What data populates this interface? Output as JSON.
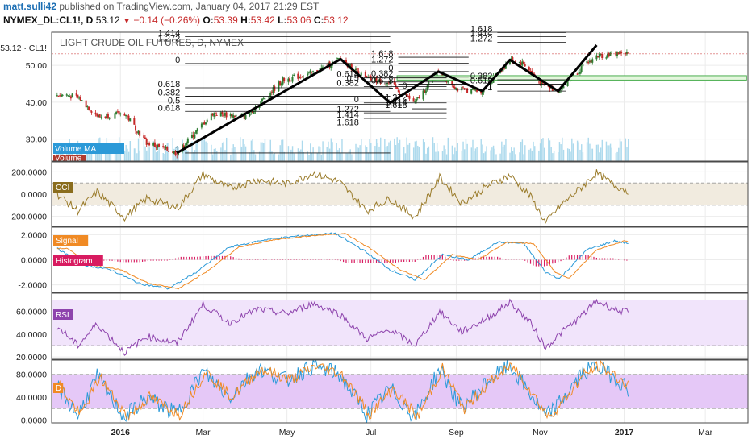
{
  "header": {
    "author": "matt.sulli42",
    "published": "published on TradingView.com, January 04, 2017 21:29 EST",
    "symbol": "NYMEX_DL:CL1!, D",
    "last": "53.12",
    "change": "−0.14 (−0.26%)",
    "o_label": "O:",
    "o_value": "53.39",
    "h_label": "H:",
    "h_value": "53.42",
    "l_label": "L:",
    "l_value": "53.06",
    "c_label": "C:",
    "c_value": "53.12"
  },
  "colors": {
    "bull": "#2e7d32",
    "bear": "#c62828",
    "volume": "#9fd3ea",
    "cci": "#9a7b2a",
    "cci_band": "#f1ebdf",
    "macd": "#2c9ad8",
    "signal": "#f08a24",
    "histogram": "#d81b60",
    "rsi": "#8e44ad",
    "rsi_band": "#f1e4fb",
    "stoch_k": "#2c9ad8",
    "stoch_d": "#f08a24",
    "stoch_band": "#e5c8f7",
    "zone": "#e4f6dd",
    "zone_edge": "#4caf50"
  },
  "chart_data": [
    {
      "type": "candlestick",
      "title": "LIGHT CRUDE OIL FUTURES, D, NYMEX",
      "price_tag": "53.12 · CL1!",
      "yticks": [
        "50.00",
        "40.00",
        "30.00"
      ],
      "ylim": [
        24,
        59
      ],
      "last_price": 53.12,
      "legend": [
        "Volume MA",
        "Volume"
      ],
      "price_path": {
        "dates": [
          "2015-11-23",
          "2015-12-02",
          "2015-12-16",
          "2016-01-04",
          "2016-01-20",
          "2016-02-11",
          "2016-03-08",
          "2016-04-01",
          "2016-04-28",
          "2016-05-20",
          "2016-06-09",
          "2016-06-27",
          "2016-07-15",
          "2016-08-02",
          "2016-08-19",
          "2016-09-02",
          "2016-09-20",
          "2016-10-10",
          "2016-10-20",
          "2016-11-03",
          "2016-11-14",
          "2016-11-30",
          "2016-12-12",
          "2016-12-30",
          "2017-01-04"
        ],
        "values": [
          42.0,
          41.0,
          36.0,
          37.0,
          29.0,
          26.2,
          37.0,
          36.0,
          46.0,
          48.0,
          51.7,
          46.5,
          45.0,
          39.8,
          48.3,
          43.5,
          43.0,
          51.5,
          50.5,
          44.5,
          43.0,
          49.0,
          52.5,
          53.5,
          53.12
        ]
      },
      "fibonacci": [
        {
          "labels": [
            "1.414",
            "1.272",
            "0",
            "0.618",
            "0.382",
            "0.5",
            "0.618",
            "1"
          ],
          "values": [
            57.8,
            56.3,
            50.5,
            43.9,
            41.6,
            39.4,
            37.5,
            26.2
          ]
        },
        {
          "labels": [
            "0.618",
            "0.382",
            "0.5",
            "0",
            "1.272",
            "1.414",
            "1.618"
          ],
          "values": [
            46.6,
            44.2,
            45.5,
            39.8,
            37.1,
            35.6,
            33.5
          ]
        },
        {
          "labels": [
            "1.618",
            "1.272",
            "0",
            "0.382",
            "0.618",
            "1"
          ],
          "values": [
            52.2,
            50.6,
            48.3,
            46.8,
            44.9,
            43.5
          ]
        },
        {
          "labels": [
            "0",
            "1.272",
            "1.414",
            "1.618"
          ],
          "values": [
            43.5,
            40.3,
            39.0,
            38.2
          ]
        },
        {
          "labels": [
            "1.618",
            "1.414",
            "1.272",
            "0.382",
            "0.618",
            "1"
          ],
          "values": [
            58.9,
            57.8,
            56.3,
            46.1,
            44.9,
            43.0
          ]
        }
      ],
      "zone": {
        "from": "2016-07-20",
        "to": "2017-03-31",
        "low": 46.0,
        "high": 47.2
      },
      "abcd_pattern": {
        "dates": [
          "2016-02-11",
          "2016-06-09",
          "2016-07-15",
          "2016-08-19",
          "2016-09-20",
          "2016-10-10",
          "2016-11-14",
          "2016-12-12"
        ],
        "values": [
          26.2,
          51.7,
          39.8,
          48.3,
          43.0,
          51.5,
          43.0,
          55.5
        ]
      }
    },
    {
      "type": "line",
      "name": "CCI",
      "yticks": [
        "200.0000",
        "0.0000",
        "-200.0000"
      ],
      "ylim": [
        -290,
        290
      ],
      "band": [
        -100,
        100
      ],
      "path": {
        "dates": [
          "2015-11-16",
          "2015-12-01",
          "2015-12-15",
          "2016-01-04",
          "2016-01-20",
          "2016-02-12",
          "2016-03-01",
          "2016-03-20",
          "2016-04-10",
          "2016-05-01",
          "2016-05-20",
          "2016-06-08",
          "2016-06-28",
          "2016-07-15",
          "2016-08-02",
          "2016-08-20",
          "2016-09-05",
          "2016-09-25",
          "2016-10-10",
          "2016-10-25",
          "2016-11-05",
          "2016-11-15",
          "2016-12-01",
          "2016-12-12",
          "2016-12-25",
          "2017-01-04"
        ],
        "values": [
          0,
          -150,
          20,
          -210,
          -40,
          -120,
          180,
          50,
          130,
          90,
          190,
          110,
          -150,
          -40,
          -210,
          150,
          -80,
          80,
          170,
          -20,
          -260,
          -110,
          60,
          190,
          80,
          30
        ]
      }
    },
    {
      "type": "line",
      "name": "MACD",
      "yticks": [
        "2.0000",
        "0.0000",
        "-2.0000"
      ],
      "ylim": [
        -2.6,
        2.6
      ],
      "legend": [
        "Signal",
        "Histogram"
      ],
      "path": {
        "dates": [
          "2015-11-16",
          "2015-12-05",
          "2015-12-25",
          "2016-01-15",
          "2016-02-05",
          "2016-02-25",
          "2016-03-20",
          "2016-04-15",
          "2016-05-10",
          "2016-06-05",
          "2016-06-25",
          "2016-07-15",
          "2016-08-02",
          "2016-08-22",
          "2016-09-10",
          "2016-10-01",
          "2016-10-20",
          "2016-11-05",
          "2016-11-15",
          "2016-12-05",
          "2016-12-25",
          "2017-01-04"
        ],
        "values": [
          0.9,
          -0.4,
          -0.8,
          -1.9,
          -2.3,
          -1.0,
          1.0,
          1.6,
          1.9,
          2.1,
          0.8,
          -0.8,
          -1.6,
          0.4,
          0.0,
          1.4,
          1.3,
          -1.0,
          -1.5,
          0.8,
          1.5,
          1.3
        ]
      }
    },
    {
      "type": "line",
      "name": "RSI",
      "yticks": [
        "60.0000",
        "40.0000",
        "20.0000"
      ],
      "ylim": [
        18,
        76
      ],
      "band": [
        30,
        70
      ],
      "path": {
        "dates": [
          "2015-11-16",
          "2015-12-01",
          "2015-12-15",
          "2016-01-04",
          "2016-01-20",
          "2016-02-11",
          "2016-03-01",
          "2016-03-20",
          "2016-04-10",
          "2016-05-01",
          "2016-05-20",
          "2016-06-08",
          "2016-06-28",
          "2016-07-15",
          "2016-08-02",
          "2016-08-20",
          "2016-09-05",
          "2016-09-25",
          "2016-10-10",
          "2016-10-25",
          "2016-11-05",
          "2016-11-15",
          "2016-12-01",
          "2016-12-12",
          "2016-12-25",
          "2017-01-04"
        ],
        "values": [
          47,
          30,
          49,
          24,
          38,
          32,
          66,
          50,
          62,
          58,
          67,
          58,
          36,
          44,
          30,
          60,
          42,
          55,
          68,
          50,
          28,
          40,
          56,
          69,
          62,
          59
        ]
      }
    },
    {
      "type": "line",
      "name": "D",
      "yticks": [
        "80.0000",
        "40.0000",
        "0.0000"
      ],
      "ylim": [
        -5,
        105
      ],
      "band": [
        20,
        80
      ],
      "path": {
        "dates": [
          "2015-11-16",
          "2015-12-01",
          "2015-12-15",
          "2016-01-04",
          "2016-01-20",
          "2016-02-11",
          "2016-03-01",
          "2016-03-20",
          "2016-04-10",
          "2016-05-01",
          "2016-05-20",
          "2016-06-08",
          "2016-06-28",
          "2016-07-15",
          "2016-08-02",
          "2016-08-20",
          "2016-09-05",
          "2016-09-25",
          "2016-10-10",
          "2016-10-25",
          "2016-11-05",
          "2016-11-15",
          "2016-12-01",
          "2016-12-12",
          "2016-12-25",
          "2017-01-04"
        ],
        "values": [
          60,
          8,
          75,
          5,
          40,
          10,
          85,
          40,
          90,
          70,
          95,
          80,
          10,
          55,
          5,
          90,
          20,
          70,
          95,
          45,
          5,
          30,
          80,
          95,
          75,
          55
        ]
      }
    }
  ],
  "xaxis": {
    "ticks": [
      {
        "date": "2016-01-01",
        "label": "2016",
        "bold": true
      },
      {
        "date": "2016-03-01",
        "label": "Mar",
        "bold": false
      },
      {
        "date": "2016-05-01",
        "label": "May",
        "bold": false
      },
      {
        "date": "2016-07-01",
        "label": "Jul",
        "bold": false
      },
      {
        "date": "2016-09-01",
        "label": "Sep",
        "bold": false
      },
      {
        "date": "2016-11-01",
        "label": "Nov",
        "bold": false
      },
      {
        "date": "2017-01-01",
        "label": "2017",
        "bold": true
      },
      {
        "date": "2017-03-01",
        "label": "Mar",
        "bold": false
      }
    ]
  }
}
